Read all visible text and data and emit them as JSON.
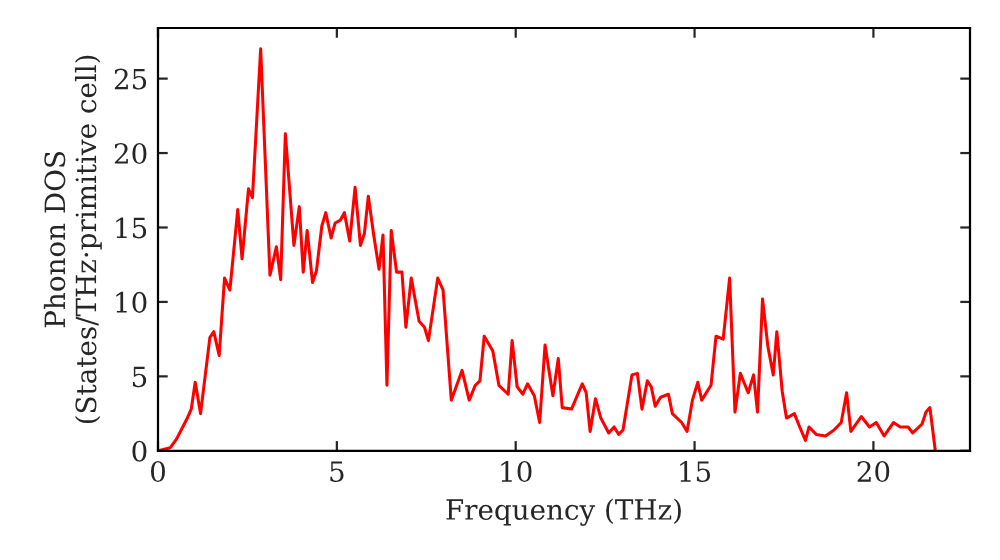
{
  "chart_data": {
    "type": "line",
    "xlabel": "Frequency (THz)",
    "ylabel": "Phonon DOS\n(States/THz·primitive cell)",
    "xlim": [
      0,
      22.7
    ],
    "ylim": [
      0,
      28.4
    ],
    "xticks": [
      0,
      5,
      10,
      15,
      20
    ],
    "yticks": [
      0,
      5,
      10,
      15,
      20,
      25
    ],
    "grid": false,
    "legend": false,
    "marker": "none",
    "line_style": "solid",
    "series": [
      {
        "color": "#ff0000",
        "x": [
          0,
          0.34,
          0.52,
          0.8,
          0.93,
          1.04,
          1.19,
          1.45,
          1.56,
          1.71,
          1.86,
          2.01,
          2.23,
          2.35,
          2.53,
          2.64,
          2.87,
          3.13,
          3.31,
          3.43,
          3.56,
          3.8,
          3.95,
          4.06,
          4.17,
          4.32,
          4.43,
          4.58,
          4.69,
          4.84,
          4.95,
          5.1,
          5.21,
          5.36,
          5.51,
          5.66,
          5.77,
          5.88,
          6.03,
          6.18,
          6.29,
          6.4,
          6.52,
          6.67,
          6.82,
          6.93,
          7.08,
          7.3,
          7.45,
          7.56,
          7.82,
          7.97,
          8.2,
          8.5,
          8.7,
          8.87,
          9.0,
          9.12,
          9.36,
          9.53,
          9.79,
          9.9,
          10.04,
          10.2,
          10.33,
          10.52,
          10.67,
          10.82,
          11.04,
          11.19,
          11.3,
          11.56,
          11.86,
          11.97,
          12.08,
          12.23,
          12.38,
          12.6,
          12.75,
          12.88,
          13.0,
          13.25,
          13.4,
          13.53,
          13.68,
          13.79,
          13.9,
          14.05,
          14.27,
          14.38,
          14.64,
          14.79,
          14.94,
          15.09,
          15.2,
          15.46,
          15.6,
          15.8,
          15.98,
          16.13,
          16.28,
          16.5,
          16.65,
          16.76,
          16.9,
          17.05,
          17.2,
          17.3,
          17.45,
          17.57,
          17.79,
          17.94,
          18.1,
          18.2,
          18.4,
          18.66,
          18.9,
          19.1,
          19.25,
          19.37,
          19.66,
          19.89,
          20.08,
          20.3,
          20.56,
          20.75,
          20.97,
          21.1,
          21.36,
          21.47,
          21.58,
          21.73
        ],
        "values": [
          0,
          0.2,
          0.8,
          2.1,
          2.8,
          4.6,
          2.5,
          7.6,
          8.0,
          6.4,
          11.6,
          10.8,
          16.2,
          12.9,
          17.6,
          17.0,
          27.0,
          11.8,
          13.7,
          11.5,
          21.3,
          13.8,
          16.4,
          12.0,
          14.8,
          11.3,
          12.1,
          15.1,
          16.0,
          14.3,
          15.3,
          15.5,
          16.0,
          14.1,
          17.7,
          13.8,
          14.6,
          17.1,
          14.5,
          12.2,
          14.5,
          4.4,
          14.8,
          12.0,
          12.0,
          8.3,
          11.6,
          8.7,
          8.3,
          7.4,
          11.6,
          10.8,
          3.4,
          5.4,
          3.4,
          4.4,
          4.7,
          7.7,
          6.7,
          4.4,
          3.8,
          7.4,
          4.3,
          3.8,
          4.5,
          3.7,
          1.9,
          7.1,
          3.7,
          6.2,
          2.9,
          2.8,
          4.5,
          3.9,
          1.3,
          3.5,
          2.2,
          1.2,
          1.6,
          1.1,
          1.4,
          5.1,
          5.2,
          2.8,
          4.7,
          4.3,
          3.0,
          3.6,
          3.8,
          2.5,
          1.9,
          1.3,
          3.4,
          4.6,
          3.4,
          4.4,
          7.7,
          7.5,
          11.6,
          2.6,
          5.2,
          3.9,
          5.1,
          2.6,
          10.2,
          7.0,
          5.1,
          8.0,
          4.0,
          2.2,
          2.5,
          1.6,
          0.7,
          1.6,
          1.1,
          1.0,
          1.4,
          1.9,
          3.9,
          1.3,
          2.3,
          1.6,
          1.9,
          1.0,
          1.9,
          1.6,
          1.6,
          1.2,
          1.8,
          2.6,
          2.9,
          0.0
        ]
      }
    ]
  }
}
